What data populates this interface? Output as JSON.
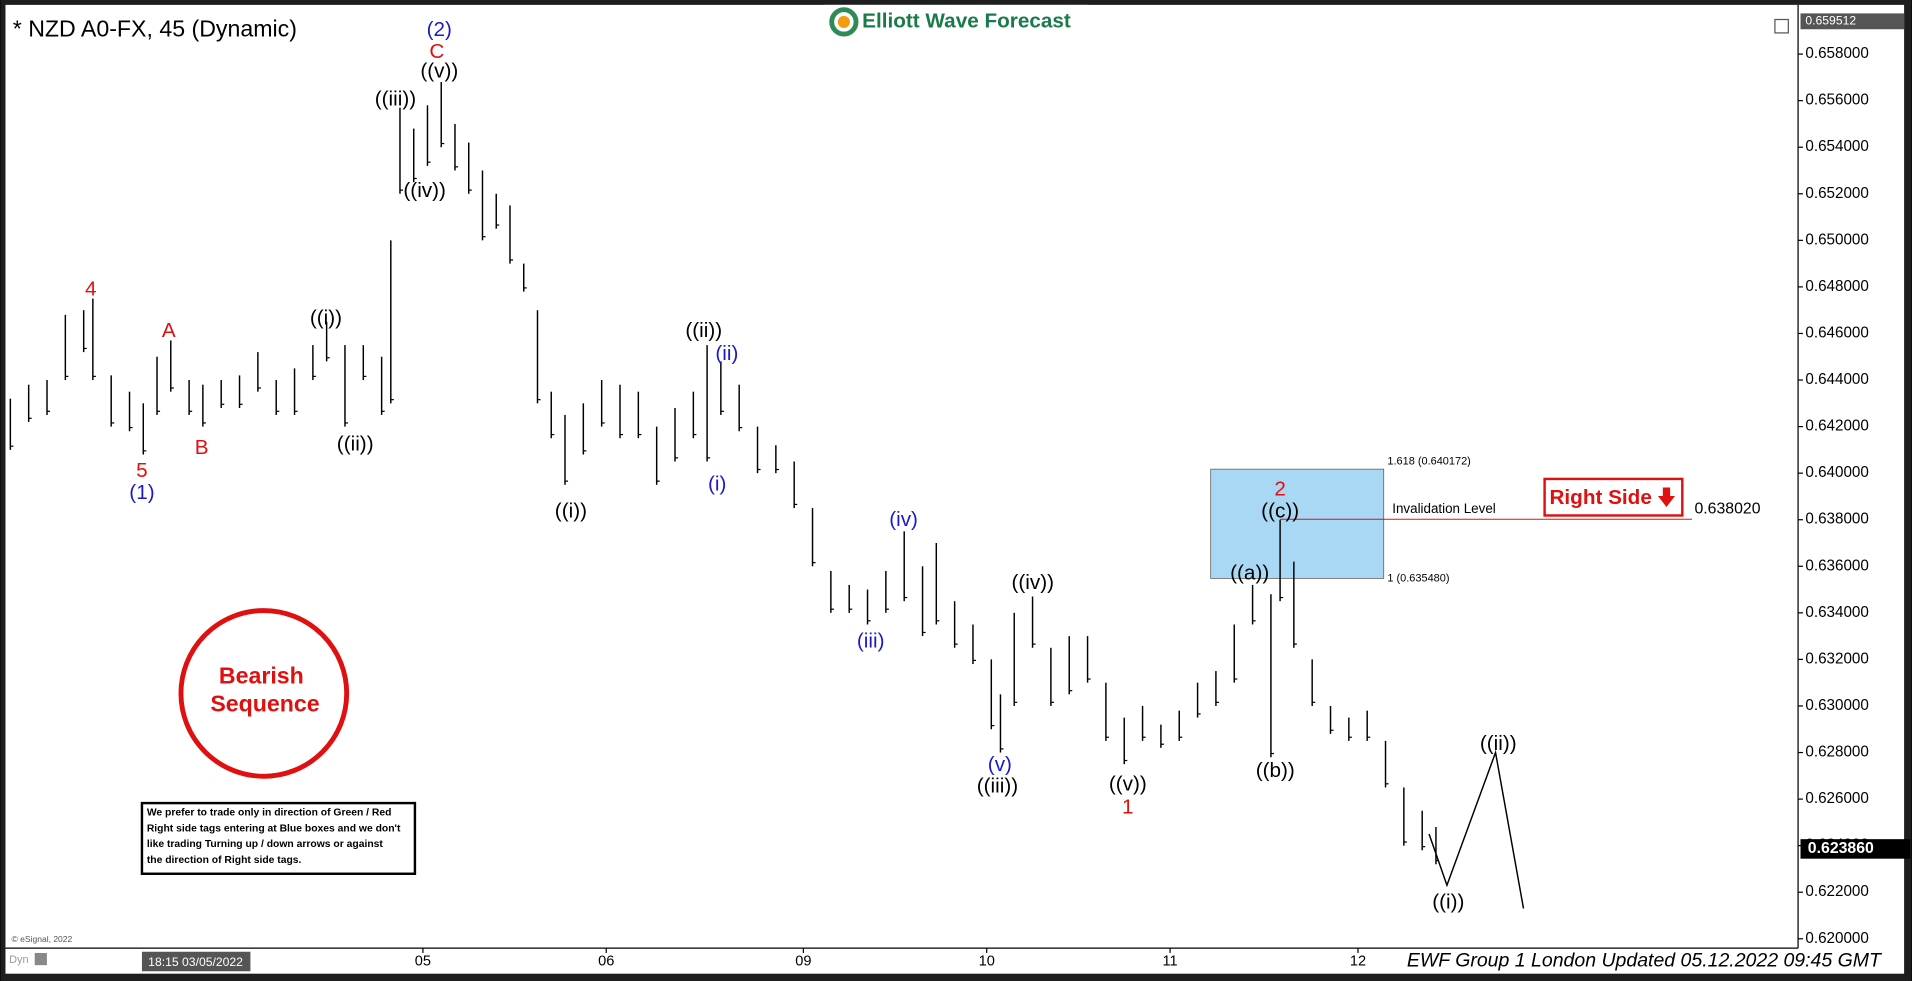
{
  "chart_data": {
    "type": "range",
    "title": "* NZD A0-FX, 45 (Dynamic)",
    "logo": "Elliott Wave Forecast",
    "top_price": {
      "value": 0.659512,
      "label": "0.659512"
    },
    "current_price": {
      "value": 0.62386,
      "label": "0.623860"
    },
    "ylim": [
      0.6196,
      0.6598
    ],
    "yticks": [
      {
        "value": 0.62,
        "label": "0.620000"
      },
      {
        "value": 0.622,
        "label": "0.622000"
      },
      {
        "value": 0.624,
        "label": "0.624000"
      },
      {
        "value": 0.626,
        "label": "0.626000"
      },
      {
        "value": 0.628,
        "label": "0.628000"
      },
      {
        "value": 0.63,
        "label": "0.630000"
      },
      {
        "value": 0.632,
        "label": "0.632000"
      },
      {
        "value": 0.634,
        "label": "0.634000"
      },
      {
        "value": 0.636,
        "label": "0.636000"
      },
      {
        "value": 0.638,
        "label": "0.638000"
      },
      {
        "value": 0.64,
        "label": "0.640000"
      },
      {
        "value": 0.642,
        "label": "0.642000"
      },
      {
        "value": 0.644,
        "label": "0.644000"
      },
      {
        "value": 0.646,
        "label": "0.646000"
      },
      {
        "value": 0.648,
        "label": "0.648000"
      },
      {
        "value": 0.65,
        "label": "0.650000"
      },
      {
        "value": 0.652,
        "label": "0.652000"
      },
      {
        "value": 0.654,
        "label": "0.654000"
      },
      {
        "value": 0.656,
        "label": "0.656000"
      },
      {
        "value": 0.658,
        "label": "0.658000"
      }
    ],
    "xlim": [
      0,
      390
    ],
    "xticks": [
      {
        "value": 90,
        "label": "05"
      },
      {
        "value": 130,
        "label": "06"
      },
      {
        "value": 173,
        "label": "09"
      },
      {
        "value": 213,
        "label": "10"
      },
      {
        "value": 253,
        "label": "11"
      },
      {
        "value": 294,
        "label": "12"
      }
    ],
    "bars": {
      "color": "#000000",
      "x": [
        0,
        4,
        8,
        12,
        16,
        18,
        22,
        26,
        29,
        32,
        35,
        39,
        42,
        46,
        50,
        54,
        58,
        62,
        66,
        69,
        73,
        77,
        81,
        83,
        85,
        88,
        91,
        94,
        97,
        100,
        103,
        106,
        109,
        112,
        115,
        118,
        121,
        125,
        129,
        133,
        137,
        141,
        145,
        149,
        152,
        155,
        159,
        163,
        167,
        171,
        175,
        179,
        183,
        187,
        191,
        195,
        199,
        202,
        206,
        210,
        214,
        216,
        219,
        223,
        227,
        231,
        235,
        239,
        243,
        247,
        251,
        255,
        259,
        263,
        267,
        271,
        275,
        277,
        280,
        284,
        288,
        292,
        296,
        300,
        304,
        308,
        311
      ],
      "high": [
        0.6432,
        0.6438,
        0.644,
        0.6468,
        0.647,
        0.6475,
        0.6442,
        0.6435,
        0.643,
        0.645,
        0.6457,
        0.644,
        0.6438,
        0.644,
        0.6442,
        0.6452,
        0.644,
        0.6445,
        0.6455,
        0.6465,
        0.6455,
        0.6455,
        0.645,
        0.65,
        0.6557,
        0.6548,
        0.6558,
        0.6568,
        0.655,
        0.6542,
        0.653,
        0.652,
        0.6515,
        0.649,
        0.647,
        0.6435,
        0.6425,
        0.643,
        0.644,
        0.6438,
        0.6435,
        0.642,
        0.6428,
        0.6435,
        0.6455,
        0.6448,
        0.6438,
        0.642,
        0.6412,
        0.6405,
        0.6385,
        0.6358,
        0.6352,
        0.635,
        0.6358,
        0.6375,
        0.636,
        0.637,
        0.6345,
        0.6335,
        0.632,
        0.6305,
        0.634,
        0.6347,
        0.6325,
        0.633,
        0.633,
        0.631,
        0.6295,
        0.63,
        0.6292,
        0.6298,
        0.631,
        0.6315,
        0.6335,
        0.6352,
        0.6348,
        0.638,
        0.6362,
        0.632,
        0.63,
        0.6295,
        0.6298,
        0.6285,
        0.6265,
        0.6255,
        0.6248
      ],
      "low": [
        0.641,
        0.6422,
        0.6425,
        0.644,
        0.6452,
        0.644,
        0.642,
        0.6418,
        0.6408,
        0.6425,
        0.6435,
        0.6425,
        0.642,
        0.6428,
        0.6428,
        0.6435,
        0.6425,
        0.6425,
        0.644,
        0.6448,
        0.642,
        0.644,
        0.6425,
        0.643,
        0.652,
        0.6525,
        0.6532,
        0.654,
        0.653,
        0.652,
        0.65,
        0.6505,
        0.649,
        0.6478,
        0.643,
        0.6415,
        0.6395,
        0.6408,
        0.642,
        0.6415,
        0.6415,
        0.6395,
        0.6405,
        0.6415,
        0.6405,
        0.6425,
        0.6418,
        0.64,
        0.64,
        0.6385,
        0.636,
        0.634,
        0.634,
        0.6335,
        0.634,
        0.6345,
        0.633,
        0.6335,
        0.6325,
        0.6318,
        0.629,
        0.628,
        0.63,
        0.6325,
        0.63,
        0.6305,
        0.631,
        0.6285,
        0.6275,
        0.6285,
        0.6282,
        0.6285,
        0.6295,
        0.63,
        0.631,
        0.6335,
        0.6278,
        0.6345,
        0.6325,
        0.63,
        0.6288,
        0.6285,
        0.6285,
        0.6265,
        0.624,
        0.6238,
        0.6232
      ]
    },
    "projection": {
      "x": [
        309.5,
        313.4,
        324,
        330.1
      ],
      "values": [
        0.6245,
        0.6223,
        0.628,
        0.6213
      ]
    },
    "zone": {
      "high": 0.640172,
      "low": 0.63548,
      "high_label": "1.618 (0.640172)",
      "low_label": "1 (0.635480)",
      "color": "#a9d8f5"
    },
    "invalidation": {
      "value": 0.63802,
      "label": "0.638020",
      "text": "Invalidation Level"
    },
    "right_side": "Right Side",
    "badge": [
      "Bearish",
      "Sequence"
    ],
    "note": [
      "We prefer to trade only in direction of Green / Red",
      "Right side tags entering at Blue boxes and we don't",
      "like trading Turning up / down arrows or against",
      "the direction of Right side tags."
    ],
    "copyright": "© eSignal, 2022",
    "start_time": "18:15 03/05/2022",
    "footer": "EWF Group 1 London Updated 05.12.2022 09:45 GMT",
    "mode": "Dyn",
    "waves": [
      {
        "text": "(2)",
        "color": "#1a1ac8"
      },
      {
        "text": "C",
        "color": "#e01010"
      },
      {
        "text": "((v))",
        "color": "#000000"
      },
      {
        "text": "((iii))",
        "color": "#000000"
      },
      {
        "text": "((iv))",
        "color": "#000000"
      },
      {
        "text": "4",
        "color": "#e01010"
      },
      {
        "text": "A",
        "color": "#e01010"
      },
      {
        "text": "B",
        "color": "#e01010"
      },
      {
        "text": "5",
        "color": "#e01010"
      },
      {
        "text": "(1)",
        "color": "#1a1ac8"
      },
      {
        "text": "((i))",
        "color": "#000000"
      },
      {
        "text": "((ii))",
        "color": "#000000"
      },
      {
        "text": "((i))",
        "color": "#000000"
      },
      {
        "text": "((ii))",
        "color": "#000000"
      },
      {
        "text": "(ii)",
        "color": "#1a1ac8"
      },
      {
        "text": "(i)",
        "color": "#1a1ac8"
      },
      {
        "text": "(iv)",
        "color": "#1a1ac8"
      },
      {
        "text": "(iii)",
        "color": "#1a1ac8"
      },
      {
        "text": "((iv))",
        "color": "#000000"
      },
      {
        "text": "(v)",
        "color": "#1a1ac8"
      },
      {
        "text": "((iii))",
        "color": "#000000"
      },
      {
        "text": "((v))",
        "color": "#000000"
      },
      {
        "text": "1",
        "color": "#e01010"
      },
      {
        "text": "2",
        "color": "#e01010"
      },
      {
        "text": "((c))",
        "color": "#000000"
      },
      {
        "text": "((a))",
        "color": "#000000"
      },
      {
        "text": "((b))",
        "color": "#000000"
      },
      {
        "text": "((ii))",
        "color": "#000000"
      },
      {
        "text": "((i))",
        "color": "#000000"
      }
    ]
  }
}
